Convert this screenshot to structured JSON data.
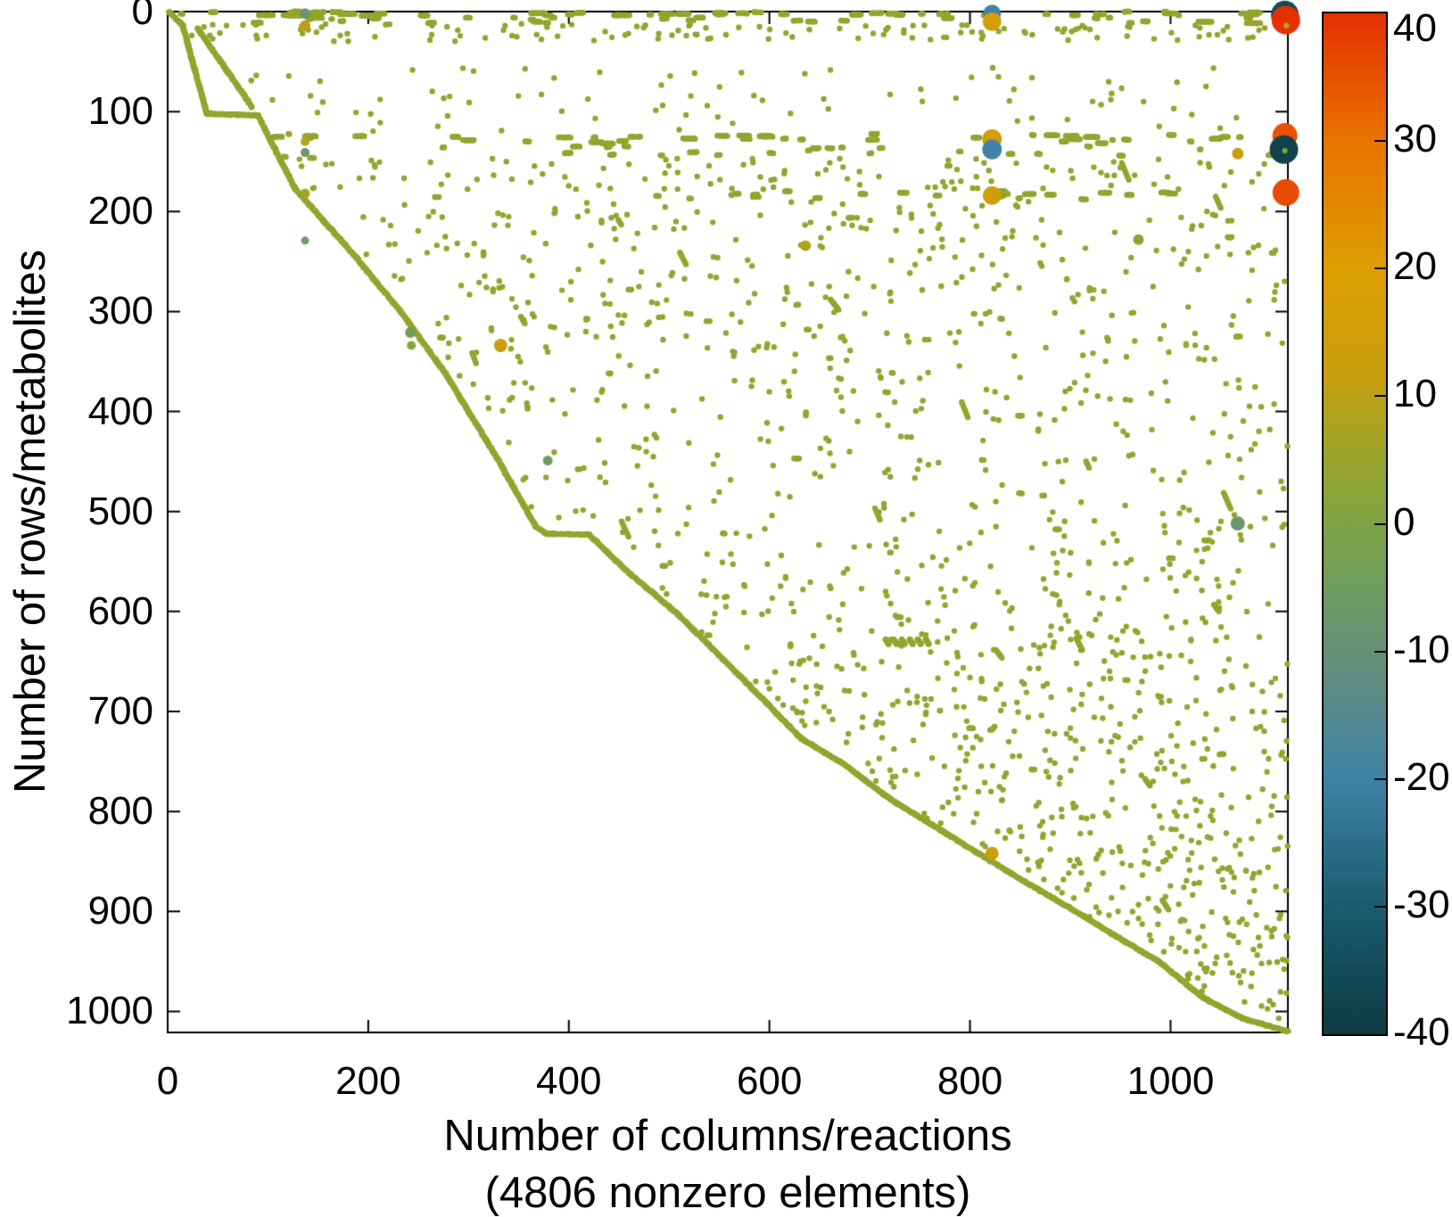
{
  "figure": {
    "background": "#ffffff"
  },
  "axes": {
    "ylabel": "Number of rows/metabolites",
    "xlabel_line1": "Number of columns/reactions",
    "xlabel_line2": "(4806 nonzero elements)",
    "x_ticks": [
      0,
      200,
      400,
      600,
      800,
      1000
    ],
    "y_ticks": [
      0,
      100,
      200,
      300,
      400,
      500,
      600,
      700,
      800,
      900,
      1000
    ],
    "x_range": [
      0,
      1117
    ],
    "y_range": [
      0,
      1021
    ],
    "axis_color": "#000000"
  },
  "colorbar": {
    "min": -40,
    "max": 40,
    "tick_labels": [
      40,
      30,
      20,
      10,
      0,
      -10,
      -20,
      -30,
      -40
    ],
    "inner_ticks": [
      30,
      20,
      10,
      0,
      -10,
      -20,
      -30
    ],
    "stops": [
      {
        "v": 40,
        "c": "#e43000"
      },
      {
        "v": 30,
        "c": "#e97300"
      },
      {
        "v": 20,
        "c": "#dd9e00"
      },
      {
        "v": 12,
        "c": "#c99e0c"
      },
      {
        "v": 5,
        "c": "#9aa52b"
      },
      {
        "v": 0,
        "c": "#7ea344"
      },
      {
        "v": -5,
        "c": "#6f9d60"
      },
      {
        "v": -10,
        "c": "#689077"
      },
      {
        "v": -20,
        "c": "#3f82a6"
      },
      {
        "v": -30,
        "c": "#1b5c6f"
      },
      {
        "v": -40,
        "c": "#0d3b43"
      }
    ]
  },
  "chart_data": {
    "type": "scatter",
    "subtype": "matrix-sparsity-spy",
    "title": "",
    "xlabel": "Number of columns/reactions (4806 nonzero elements)",
    "ylabel": "Number of rows/metabolites",
    "x_range": [
      0,
      1117
    ],
    "y_range": [
      0,
      1021
    ],
    "y_axis_reversed": true,
    "nonzero_count": 4806,
    "dot_color": "#94a42e",
    "dot_radius": 3.2,
    "color_scale_range": [
      -40,
      40
    ],
    "staircase_main": [
      [
        2,
        1
      ],
      [
        15,
        14
      ],
      [
        39,
        102
      ],
      [
        90,
        104
      ],
      [
        127,
        177
      ],
      [
        188,
        246
      ],
      [
        233,
        301
      ],
      [
        277,
        362
      ],
      [
        331,
        451
      ],
      [
        367,
        515
      ],
      [
        377,
        522
      ],
      [
        420,
        523
      ],
      [
        456,
        558
      ],
      [
        508,
        602
      ],
      [
        570,
        664
      ],
      [
        632,
        727
      ],
      [
        676,
        754
      ],
      [
        721,
        788
      ],
      [
        765,
        815
      ],
      [
        810,
        843
      ],
      [
        854,
        870
      ],
      [
        899,
        896
      ],
      [
        943,
        923
      ],
      [
        988,
        950
      ],
      [
        1032,
        986
      ],
      [
        1072,
        1007
      ],
      [
        1117,
        1020
      ]
    ],
    "staircase_secondary": [
      [
        30,
        17
      ],
      [
        84,
        95
      ]
    ],
    "stair_step": 1.7,
    "stair_jitter": 0.8,
    "generator": {
      "seed": 7,
      "retry": 8,
      "margin": 5,
      "regions": [
        {
          "type": "hruns",
          "y0": 0,
          "y1": 4,
          "x0": 2,
          "x1": 1117,
          "runs": 48,
          "len": [
            2,
            16
          ]
        },
        {
          "type": "hruns",
          "y0": 6,
          "y1": 12,
          "x0": 2,
          "x1": 1117,
          "runs": 32,
          "len": [
            2,
            9
          ]
        },
        {
          "type": "scatter",
          "y0": 12,
          "y1": 30,
          "x0": 5,
          "x1": 1117,
          "n": 130
        },
        {
          "type": "scatter",
          "y0": 55,
          "y1": 120,
          "x0": 60,
          "x1": 1117,
          "n": 80
        },
        {
          "type": "hruns",
          "y0": 122,
          "y1": 132,
          "x0": 60,
          "x1": 1117,
          "runs": 42,
          "len": [
            2,
            13
          ]
        },
        {
          "type": "hruns",
          "y0": 133,
          "y1": 147,
          "x0": 60,
          "x1": 1117,
          "runs": 30,
          "len": [
            2,
            8
          ]
        },
        {
          "type": "scatter",
          "y0": 147,
          "y1": 178,
          "x0": 100,
          "x1": 1117,
          "n": 110
        },
        {
          "type": "hruns",
          "y0": 178,
          "y1": 190,
          "x0": 260,
          "x1": 1117,
          "runs": 24,
          "len": [
            2,
            10
          ]
        },
        {
          "type": "scatter",
          "y0": 190,
          "y1": 345,
          "x0": 120,
          "x1": 1117,
          "n": 320
        },
        {
          "type": "scatter",
          "y0": 345,
          "y1": 560,
          "x0": 170,
          "x1": 1117,
          "n": 280
        },
        {
          "type": "scatter",
          "y0": 560,
          "y1": 670,
          "x0": 340,
          "x1": 1117,
          "n": 190
        },
        {
          "type": "scatter",
          "y0": 670,
          "y1": 780,
          "x0": 420,
          "x1": 1117,
          "n": 200
        },
        {
          "type": "scatter",
          "y0": 780,
          "y1": 905,
          "x0": 540,
          "x1": 1117,
          "n": 170
        },
        {
          "type": "scatter",
          "y0": 905,
          "y1": 1012,
          "x0": 700,
          "x1": 1117,
          "n": 80
        },
        {
          "type": "druns",
          "y0": 150,
          "y1": 900,
          "x0": 300,
          "x1": 1100,
          "runs": 26,
          "len": [
            4,
            9
          ]
        },
        {
          "type": "hruns",
          "y0": 200,
          "y1": 780,
          "x0": 200,
          "x1": 1117,
          "runs": 40,
          "len": [
            2,
            6
          ]
        },
        {
          "type": "vruns",
          "y0": 200,
          "y1": 800,
          "x0": 250,
          "x1": 1100,
          "runs": 12,
          "len": [
            2,
            4
          ]
        }
      ],
      "zigzag": {
        "col0": 716,
        "row0": 628,
        "count": 6,
        "spacing": 8,
        "len": 3,
        "slope": 2.2
      }
    },
    "notable_points": [
      {
        "col": 1114,
        "row": 3,
        "value": -35,
        "radius": 15.5
      },
      {
        "col": 1115,
        "row": 8.5,
        "value": 40,
        "radius": 16
      },
      {
        "col": 1115.5,
        "row": 14,
        "value": 10,
        "radius": 3.2
      },
      {
        "col": 822,
        "row": 2,
        "value": -20,
        "radius": 10
      },
      {
        "col": 822,
        "row": 10,
        "value": 15,
        "radius": 10.5
      },
      {
        "col": 137,
        "row": 2,
        "value": -8,
        "radius": 6
      },
      {
        "col": 137,
        "row": 14,
        "value": 10,
        "radius": 6
      },
      {
        "col": 822,
        "row": 127.5,
        "value": 15,
        "radius": 11
      },
      {
        "col": 822,
        "row": 138,
        "value": -20,
        "radius": 11
      },
      {
        "col": 137,
        "row": 130,
        "value": 10,
        "radius": 5
      },
      {
        "col": 137,
        "row": 141,
        "value": -8,
        "radius": 5
      },
      {
        "col": 1114,
        "row": 124,
        "value": 35,
        "radius": 14
      },
      {
        "col": 1113,
        "row": 138,
        "value": -38,
        "radius": 16
      },
      {
        "col": 1114,
        "row": 139,
        "value": 2,
        "radius": 3
      },
      {
        "col": 1067,
        "row": 142,
        "value": 12,
        "radius": 6.5
      },
      {
        "col": 1115,
        "row": 181,
        "value": 36,
        "radius": 15
      },
      {
        "col": 822,
        "row": 184,
        "value": 14,
        "radius": 10.5
      },
      {
        "col": 137,
        "row": 182,
        "value": 6,
        "radius": 5.5
      },
      {
        "col": 137,
        "row": 229,
        "value": -6,
        "radius": 4.5
      },
      {
        "col": 636,
        "row": 234,
        "value": 8,
        "radius": 6
      },
      {
        "col": 968,
        "row": 228,
        "value": 3,
        "radius": 6
      },
      {
        "col": 242,
        "row": 321,
        "value": -4,
        "radius": 6
      },
      {
        "col": 243,
        "row": 334,
        "value": 2,
        "radius": 5
      },
      {
        "col": 332,
        "row": 334,
        "value": 12,
        "radius": 7.5
      },
      {
        "col": 379,
        "row": 449,
        "value": -5,
        "radius": 5.5
      },
      {
        "col": 1067,
        "row": 512,
        "value": -8,
        "radius": 8
      },
      {
        "col": 822,
        "row": 842,
        "value": 12,
        "radius": 7.5
      }
    ]
  }
}
